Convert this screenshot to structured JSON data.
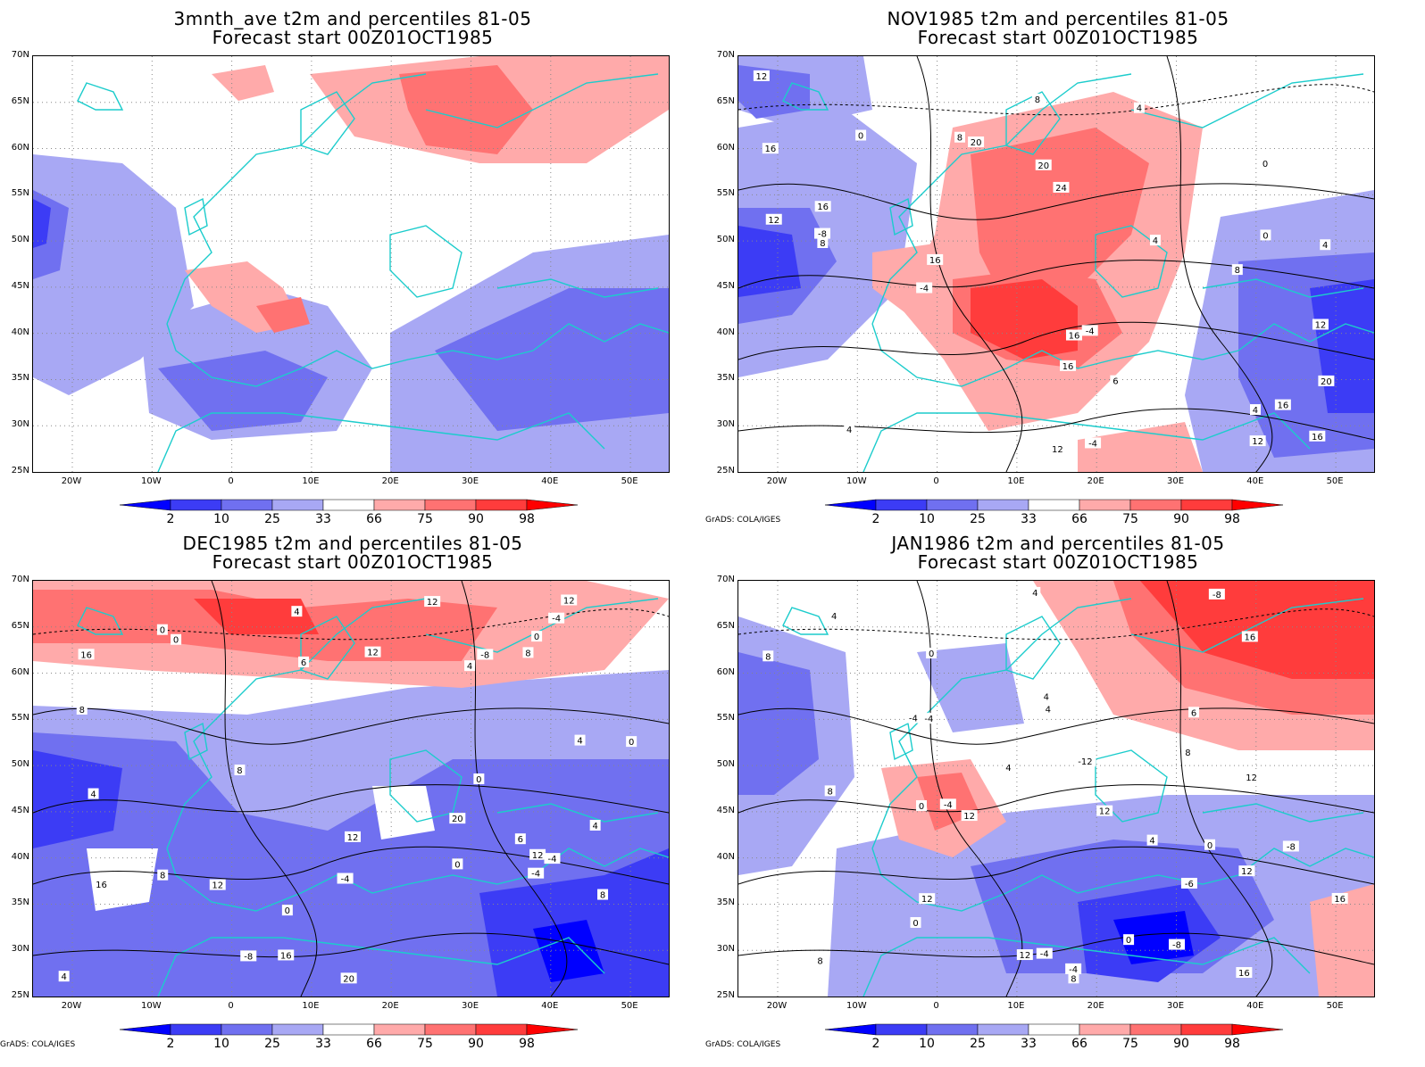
{
  "colorbar": {
    "labels": [
      "2",
      "10",
      "25",
      "33",
      "66",
      "75",
      "90",
      "98"
    ],
    "colors": [
      "#0000ff",
      "#3c3cf5",
      "#7070f0",
      "#a8a8f4",
      "#ffffff",
      "#ffaaaa",
      "#ff7272",
      "#ff3c3c",
      "#ff0000"
    ]
  },
  "credit": "GrADS: COLA/IGES",
  "lat_labels": [
    "70N",
    "65N",
    "60N",
    "55N",
    "50N",
    "45N",
    "40N",
    "35N",
    "30N",
    "25N"
  ],
  "lon_labels": [
    "20W",
    "10W",
    "0",
    "10E",
    "20E",
    "30E",
    "40E",
    "50E"
  ],
  "coast_color": "#1ccccc",
  "panels": [
    {
      "title1": "3mnth_ave t2m and percentiles 81-05",
      "title2": "Forecast start 00Z01OCT1985",
      "show_credit": false,
      "contour_labels": []
    },
    {
      "title1": "NOV1985 t2m and percentiles 81-05",
      "title2": "Forecast start 00Z01OCT1985",
      "show_credit": true,
      "contour_labels": [
        "-8",
        "-4",
        "0",
        "4",
        "4",
        "-4",
        "-4",
        "0",
        "4",
        "8",
        "6",
        "12",
        "4",
        "8",
        "16",
        "12",
        "16",
        "16",
        "12",
        "12",
        "20",
        "16",
        "16",
        "16",
        "20",
        "4",
        "8",
        "0",
        "12",
        "16",
        "8",
        "20",
        "24"
      ]
    },
    {
      "title1": "DEC1985 t2m and percentiles 81-05",
      "title2": "Forecast start 00Z01OCT1985",
      "show_credit": true,
      "contour_labels": [
        "-8",
        "-4",
        "-4",
        "0",
        "4",
        "4",
        "-8",
        "-4",
        "0",
        "4",
        "8",
        "0",
        "12",
        "0",
        "4",
        "8",
        "12",
        "16",
        "6",
        "6",
        "12",
        "20",
        "12",
        "0",
        "8",
        "4",
        "0",
        "-4",
        "8",
        "12",
        "4",
        "8",
        "16",
        "16",
        "12",
        "20",
        "0"
      ]
    },
    {
      "title1": "JAN1986 t2m and percentiles 81-05",
      "title2": "Forecast start 00Z01OCT1985",
      "show_credit": true,
      "contour_labels": [
        "-12",
        "-8",
        "-8",
        "-4",
        "0",
        "4",
        "-8",
        "-4",
        "-4",
        "-6",
        "0",
        "4",
        "8",
        "-4",
        "4",
        "12",
        "8",
        "12",
        "16",
        "6",
        "8",
        "12",
        "0",
        "4",
        "8",
        "12",
        "12",
        "16",
        "0",
        "4",
        "-4",
        "4",
        "0",
        "8",
        "12",
        "16"
      ]
    }
  ]
}
